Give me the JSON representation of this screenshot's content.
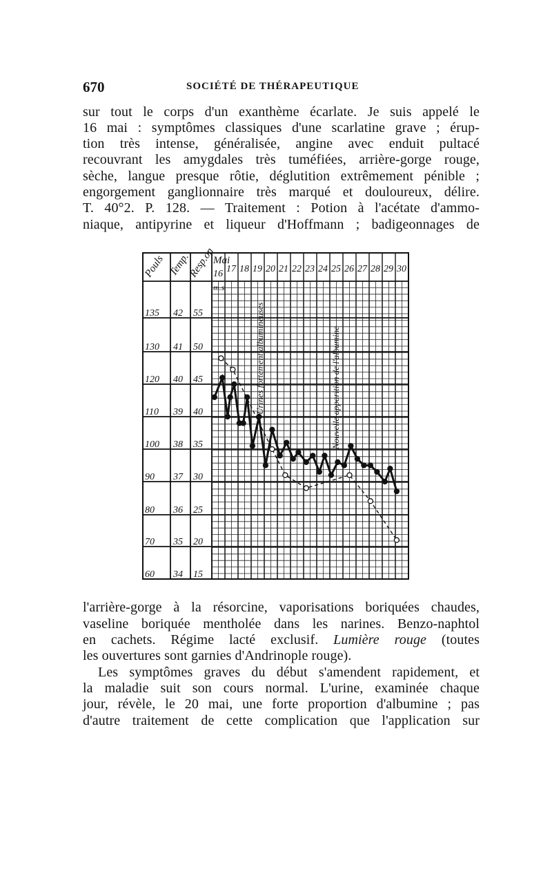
{
  "header": {
    "page_number": "670",
    "running_title": "SOCIÉTÉ DE THÉRAPEUTIQUE"
  },
  "text_top": [
    "sur tout le corps d'un exanthème écarlate. Je suis appelé le",
    "16 mai : symptômes classiques d'une scarlatine grave ; érup-",
    "tion très intense, généralisée, angine avec enduit pultacé",
    "recouvrant les amygdales très tuméfiées, arrière-gorge rouge,",
    "sèche, langue presque rôtie, déglutition extrêmement pénible ;",
    "engorgement ganglionnaire très marqué et douloureux, délire.",
    "T. 40°2. P. 128. — Traitement : Potion à l'acétate d'ammo-",
    "niaque, antipyrine et liqueur d'Hoffmann ; badigeonnages de"
  ],
  "text_bottom": {
    "l1": "l'arrière-gorge à la résorcine, vaporisations boriquées chaudes,",
    "l2": "vaseline boriquée mentholée dans les narines. Benzo-naphtol",
    "l3_before": "en cachets. Régime lacté exclusif. ",
    "l3_italic": "Lumière rouge",
    "l3_after": " (toutes",
    "l4": "les ouvertures sont garnies d'Andrinople rouge).",
    "l5": "Les symptômes graves du début s'amendent rapidement, et",
    "l6": "la maladie suit son cours normal. L'urine, examinée chaque",
    "l7": "jour, révèle, le 20 mai, une forte proportion d'albumine ; pas",
    "l8": "d'autre traitement de cette complication que l'application sur"
  },
  "chart_data": {
    "type": "line",
    "column_headers": [
      "Pouls",
      "Temp.",
      "Resp.on"
    ],
    "month_label": "Mai",
    "sub_label": "m.s",
    "days": [
      "16",
      "17",
      "18",
      "19",
      "20",
      "21",
      "22",
      "23",
      "24",
      "25",
      "26",
      "27",
      "28",
      "29",
      "30"
    ],
    "rows": [
      {
        "pouls": "135",
        "temp": "42",
        "resp": "55"
      },
      {
        "pouls": "130",
        "temp": "41",
        "resp": "50"
      },
      {
        "pouls": "120",
        "temp": "40",
        "resp": "45"
      },
      {
        "pouls": "110",
        "temp": "39",
        "resp": "40"
      },
      {
        "pouls": "100",
        "temp": "38",
        "resp": "35"
      },
      {
        "pouls": "90",
        "temp": "37",
        "resp": "30"
      },
      {
        "pouls": "80",
        "temp": "36",
        "resp": "25"
      },
      {
        "pouls": "70",
        "temp": "35",
        "resp": "20"
      },
      {
        "pouls": "60",
        "temp": "34",
        "resp": "15"
      }
    ],
    "annotations": [
      {
        "text": "Urines fortement albumineuses",
        "day": 20
      },
      {
        "text": "Nouvelle apparition de l'albumine",
        "day": 26
      }
    ],
    "ylim_pouls": [
      60,
      140
    ],
    "grid": true,
    "series": [
      {
        "style": "solid, filled dots",
        "points": [
          [
            16.2,
            116
          ],
          [
            16.8,
            122
          ],
          [
            17.2,
            110
          ],
          [
            17.4,
            116
          ],
          [
            17.7,
            120
          ],
          [
            18.1,
            108
          ],
          [
            18.4,
            108
          ],
          [
            18.7,
            116
          ],
          [
            19.1,
            101
          ],
          [
            19.6,
            110
          ],
          [
            20.1,
            95
          ],
          [
            20.6,
            106
          ],
          [
            21.2,
            98
          ],
          [
            21.7,
            102
          ],
          [
            22.2,
            97
          ],
          [
            22.6,
            99
          ],
          [
            23.2,
            96
          ],
          [
            23.7,
            98
          ],
          [
            24.2,
            93
          ],
          [
            24.6,
            98
          ],
          [
            25.1,
            92
          ],
          [
            25.6,
            96
          ],
          [
            26.1,
            95
          ],
          [
            26.6,
            101
          ],
          [
            27.1,
            97
          ],
          [
            27.6,
            95
          ],
          [
            28.1,
            95
          ],
          [
            28.6,
            93
          ],
          [
            29.2,
            90
          ],
          [
            29.6,
            94
          ],
          [
            30.1,
            87
          ]
        ]
      },
      {
        "style": "dashed, open circles",
        "points": [
          [
            16.7,
            128
          ],
          [
            17.6,
            124.5
          ],
          [
            20.6,
            100
          ],
          [
            21.6,
            92
          ],
          [
            23.2,
            88
          ],
          [
            26.5,
            92
          ],
          [
            28.1,
            84
          ],
          [
            30.1,
            72
          ]
        ]
      }
    ]
  }
}
